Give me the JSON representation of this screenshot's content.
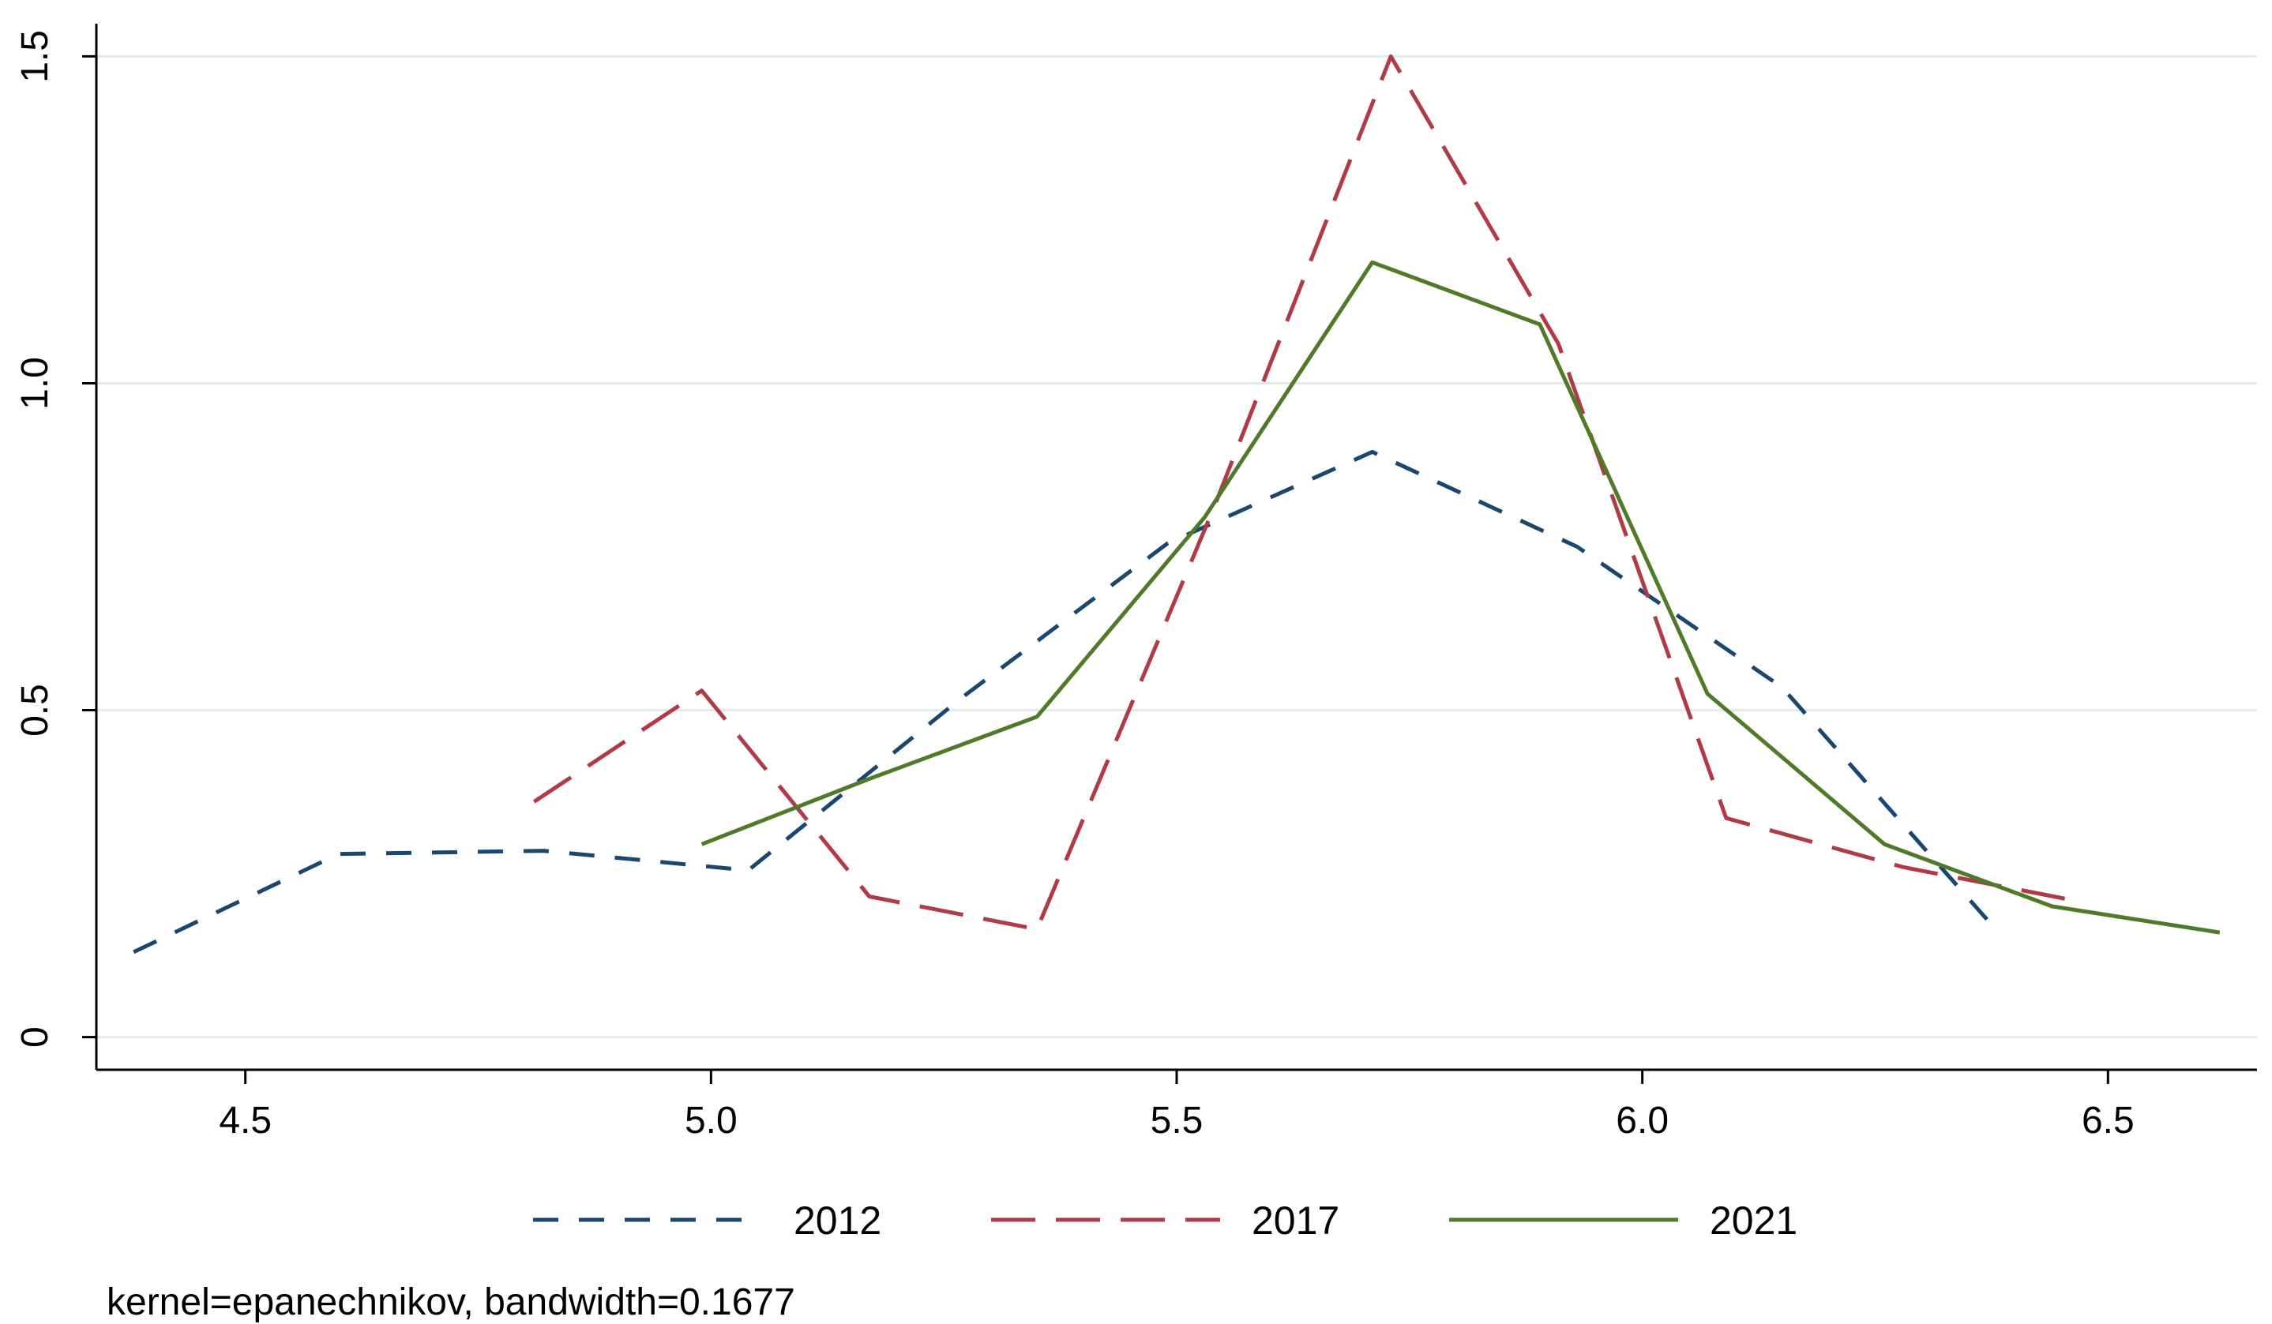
{
  "chart_data": {
    "type": "line",
    "title": "",
    "xlabel": "",
    "ylabel": "",
    "xlim": [
      4.34,
      6.66
    ],
    "ylim": [
      -0.05,
      1.55
    ],
    "x_ticks": [
      4.5,
      5.0,
      5.5,
      6.0,
      6.5
    ],
    "x_tick_labels": [
      "4.5",
      "5.0",
      "5.5",
      "6.0",
      "6.5"
    ],
    "y_ticks": [
      0,
      0.5,
      1.0,
      1.5
    ],
    "y_tick_labels": [
      "0",
      "0.5",
      "1.0",
      "1.5"
    ],
    "grid": true,
    "legend_position": "bottom",
    "note": "kernel=epanechnikov, bandwidth=0.1677",
    "series": [
      {
        "name": "2012",
        "color": "#1a476f",
        "dash": "short-dash",
        "x": [
          4.38,
          4.6,
          4.82,
          5.04,
          5.27,
          5.49,
          5.71,
          5.93,
          6.15,
          6.37
        ],
        "y": [
          0.13,
          0.28,
          0.285,
          0.255,
          0.52,
          0.755,
          0.895,
          0.75,
          0.535,
          0.18
        ]
      },
      {
        "name": "2017",
        "color": "#b03a46",
        "dash": "long-dash",
        "x": [
          4.81,
          4.99,
          5.17,
          5.35,
          5.54,
          5.73,
          5.91,
          6.09,
          6.28,
          6.46
        ],
        "y": [
          0.36,
          0.53,
          0.215,
          0.165,
          0.81,
          1.5,
          1.06,
          0.335,
          0.26,
          0.21
        ]
      },
      {
        "name": "2021",
        "color": "#4f7a28",
        "dash": "solid",
        "x": [
          4.99,
          5.17,
          5.35,
          5.53,
          5.71,
          5.89,
          6.07,
          6.26,
          6.44,
          6.62
        ],
        "y": [
          0.295,
          0.395,
          0.49,
          0.795,
          1.185,
          1.09,
          0.525,
          0.295,
          0.2,
          0.16
        ]
      }
    ]
  }
}
